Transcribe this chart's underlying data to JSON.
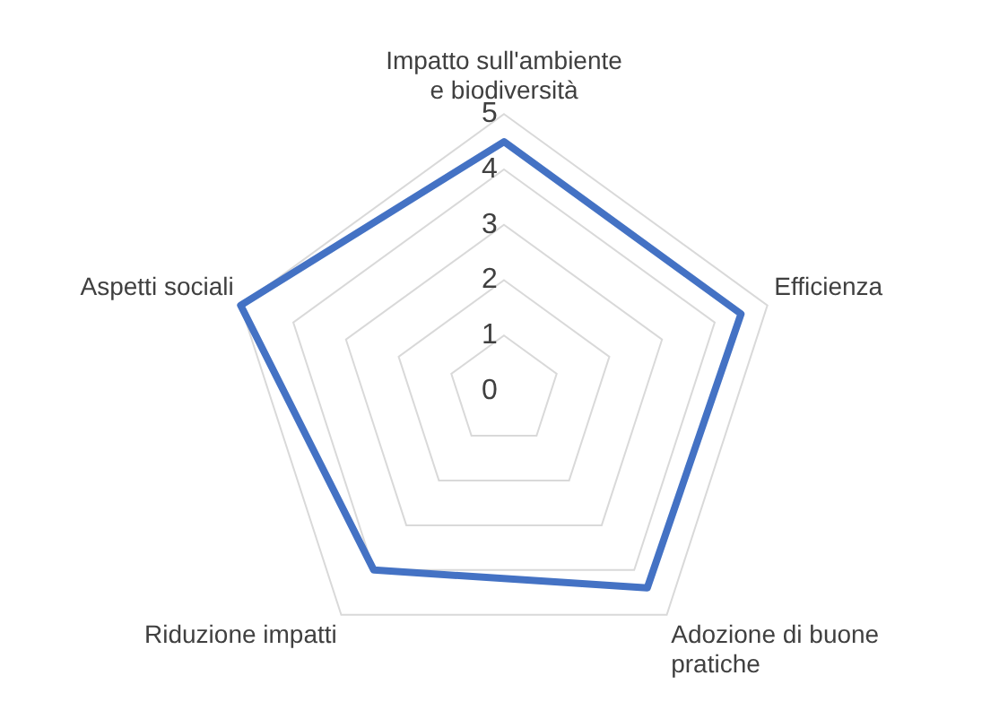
{
  "chart_data": {
    "type": "radar",
    "categories": [
      "Impatto sull'ambiente e biodiversità",
      "Efficienza",
      "Adozione di buone pratiche",
      "Riduzione impatti",
      "Aspetti sociali"
    ],
    "series": [
      {
        "color": "#4472c4",
        "values": [
          4.5,
          4.5,
          4.4,
          4,
          5
        ]
      }
    ],
    "ylim": [
      0,
      5
    ],
    "yticks": [
      0,
      1,
      2,
      3,
      4,
      5
    ],
    "grid": true,
    "legend": false,
    "marker": "none"
  }
}
